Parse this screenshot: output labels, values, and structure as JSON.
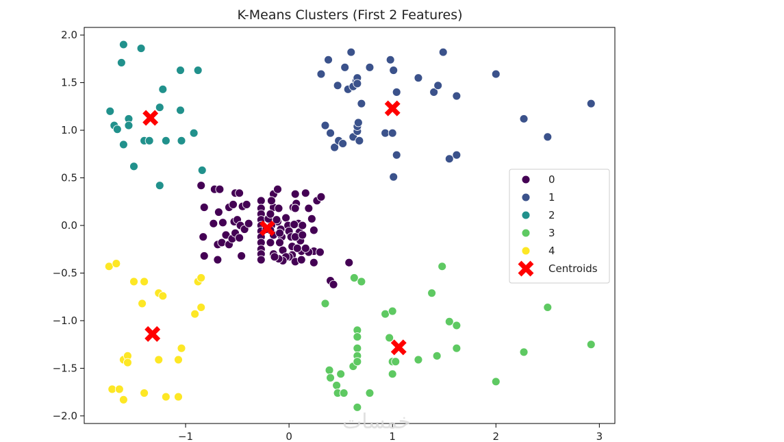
{
  "chart_data": {
    "type": "scatter",
    "title": "K-Means Clusters (First 2 Features)",
    "xlabel": "",
    "ylabel": "",
    "xlim": [
      -1.98,
      3.15
    ],
    "ylim": [
      -2.08,
      2.08
    ],
    "xticks": [
      -1,
      0,
      1,
      2,
      3
    ],
    "xtick_labels": [
      "−1",
      "0",
      "1",
      "2",
      "3"
    ],
    "yticks": [
      -2.0,
      -1.5,
      -1.0,
      -0.5,
      0.0,
      0.5,
      1.0,
      1.5,
      2.0
    ],
    "ytick_labels": [
      "−2.0",
      "−1.5",
      "−1.0",
      "−0.5",
      "0.0",
      "0.5",
      "1.0",
      "1.5",
      "2.0"
    ],
    "grid": false,
    "legend_position": "center-right",
    "series": [
      {
        "name": "0",
        "color": "#440154",
        "points": [
          [
            -0.85,
            0.42
          ],
          [
            -0.72,
            0.38
          ],
          [
            -0.67,
            0.38
          ],
          [
            -0.82,
            0.19
          ],
          [
            -0.68,
            0.14
          ],
          [
            -0.58,
            0.19
          ],
          [
            -0.52,
            0.34
          ],
          [
            -0.48,
            0.34
          ],
          [
            -0.45,
            0.2
          ],
          [
            -0.41,
            0.22
          ],
          [
            -0.54,
            0.22
          ],
          [
            -0.73,
            0.02
          ],
          [
            -0.64,
            0.03
          ],
          [
            -0.53,
            0.04
          ],
          [
            -0.5,
            0.06
          ],
          [
            -0.47,
            0.0
          ],
          [
            -0.43,
            -0.04
          ],
          [
            -0.39,
            0.02
          ],
          [
            -0.83,
            -0.12
          ],
          [
            -0.69,
            -0.2
          ],
          [
            -0.65,
            -0.18
          ],
          [
            -0.61,
            -0.1
          ],
          [
            -0.58,
            -0.2
          ],
          [
            -0.55,
            -0.14
          ],
          [
            -0.52,
            -0.08
          ],
          [
            -0.48,
            -0.13
          ],
          [
            -0.82,
            -0.32
          ],
          [
            -0.69,
            -0.36
          ],
          [
            -0.46,
            -0.32
          ],
          [
            -0.27,
            0.26
          ],
          [
            -0.27,
            0.18
          ],
          [
            -0.27,
            0.12
          ],
          [
            -0.27,
            0.06
          ],
          [
            -0.27,
            0.0
          ],
          [
            -0.27,
            -0.06
          ],
          [
            -0.27,
            -0.12
          ],
          [
            -0.27,
            -0.18
          ],
          [
            -0.27,
            -0.25
          ],
          [
            -0.27,
            -0.3
          ],
          [
            -0.27,
            -0.36
          ],
          [
            -0.15,
            0.33
          ],
          [
            -0.15,
            0.19
          ],
          [
            -0.17,
            0.26
          ],
          [
            -0.11,
            0.04
          ],
          [
            -0.15,
            -0.1
          ],
          [
            -0.18,
            -0.18
          ],
          [
            -0.15,
            -0.3
          ],
          [
            -0.1,
            0.18
          ],
          [
            -0.11,
            0.38
          ],
          [
            -0.08,
            -0.04
          ],
          [
            -0.07,
            -0.12
          ],
          [
            -0.09,
            -0.18
          ],
          [
            -0.06,
            -0.26
          ],
          [
            -0.03,
            0.08
          ],
          [
            -0.01,
            0.0
          ],
          [
            0.0,
            -0.06
          ],
          [
            0.02,
            -0.12
          ],
          [
            0.03,
            -0.22
          ],
          [
            0.04,
            0.19
          ],
          [
            0.06,
            0.33
          ],
          [
            0.07,
            0.23
          ],
          [
            0.09,
            0.02
          ],
          [
            0.1,
            -0.07
          ],
          [
            0.11,
            -0.16
          ],
          [
            0.12,
            -0.27
          ],
          [
            0.16,
            0.34
          ],
          [
            0.19,
            0.18
          ],
          [
            0.22,
            0.07
          ],
          [
            0.24,
            -0.05
          ],
          [
            0.24,
            -0.27
          ],
          [
            0.24,
            -0.39
          ],
          [
            0.27,
            0.26
          ],
          [
            0.31,
            0.3
          ],
          [
            0.03,
            -0.31
          ],
          [
            0.0,
            -0.33
          ],
          [
            -0.03,
            -0.33
          ],
          [
            -0.06,
            -0.37
          ],
          [
            -0.1,
            -0.35
          ],
          [
            -0.14,
            -0.33
          ],
          [
            -0.17,
            0.0
          ],
          [
            -0.18,
            -0.05
          ],
          [
            -0.2,
            0.07
          ],
          [
            0.19,
            -0.28
          ],
          [
            0.16,
            -0.24
          ],
          [
            0.06,
            -0.38
          ],
          [
            0.06,
            -0.12
          ],
          [
            0.05,
            0.01
          ],
          [
            0.13,
            0.0
          ],
          [
            0.13,
            -0.1
          ],
          [
            0.3,
            -0.28
          ],
          [
            0.12,
            -0.36
          ],
          [
            0.08,
            -0.24
          ],
          [
            0.4,
            -0.58
          ],
          [
            0.43,
            -0.62
          ],
          [
            0.58,
            -0.39
          ],
          [
            -0.09,
            -0.08
          ],
          [
            -0.12,
            0.06
          ],
          [
            -0.22,
            -0.04
          ],
          [
            0.06,
            0.18
          ],
          [
            -0.18,
            0.12
          ]
        ]
      },
      {
        "name": "1",
        "color": "#3b528b",
        "points": [
          [
            0.31,
            1.59
          ],
          [
            0.38,
            1.74
          ],
          [
            0.47,
            1.47
          ],
          [
            0.54,
            1.66
          ],
          [
            0.57,
            1.43
          ],
          [
            0.62,
            1.46
          ],
          [
            0.6,
            1.82
          ],
          [
            0.65,
            1.52
          ],
          [
            0.66,
            1.55
          ],
          [
            0.66,
            1.49
          ],
          [
            0.7,
            1.28
          ],
          [
            0.78,
            1.66
          ],
          [
            0.98,
            1.74
          ],
          [
            1.01,
            1.63
          ],
          [
            1.04,
            1.4
          ],
          [
            1.25,
            1.55
          ],
          [
            1.4,
            1.4
          ],
          [
            1.44,
            1.47
          ],
          [
            1.49,
            1.82
          ],
          [
            1.62,
            1.36
          ],
          [
            2.0,
            1.59
          ],
          [
            2.27,
            1.12
          ],
          [
            2.5,
            0.93
          ],
          [
            2.92,
            1.28
          ],
          [
            0.35,
            1.05
          ],
          [
            0.4,
            0.97
          ],
          [
            0.44,
            0.82
          ],
          [
            0.48,
            0.89
          ],
          [
            0.52,
            0.86
          ],
          [
            0.62,
            0.93
          ],
          [
            0.66,
            0.99
          ],
          [
            0.66,
            1.04
          ],
          [
            0.67,
            1.08
          ],
          [
            0.68,
            0.89
          ],
          [
            0.93,
            0.97
          ],
          [
            1.0,
            0.97
          ],
          [
            1.04,
            0.74
          ],
          [
            1.01,
            0.51
          ],
          [
            1.55,
            0.7
          ],
          [
            1.62,
            0.74
          ]
        ]
      },
      {
        "name": "2",
        "color": "#21918c",
        "points": [
          [
            -1.6,
            1.9
          ],
          [
            -1.62,
            1.71
          ],
          [
            -1.43,
            1.86
          ],
          [
            -1.73,
            1.2
          ],
          [
            -1.69,
            1.05
          ],
          [
            -1.66,
            1.01
          ],
          [
            -1.55,
            1.12
          ],
          [
            -1.55,
            1.05
          ],
          [
            -1.6,
            0.85
          ],
          [
            -1.5,
            0.62
          ],
          [
            -1.4,
            0.89
          ],
          [
            -1.35,
            0.89
          ],
          [
            -1.25,
            1.24
          ],
          [
            -1.22,
            1.43
          ],
          [
            -1.19,
            0.89
          ],
          [
            -1.05,
            1.63
          ],
          [
            -1.05,
            1.21
          ],
          [
            -1.04,
            0.89
          ],
          [
            -0.92,
            0.97
          ],
          [
            -0.88,
            1.63
          ],
          [
            -0.84,
            0.58
          ],
          [
            -1.25,
            0.42
          ]
        ]
      },
      {
        "name": "3",
        "color": "#5ec962",
        "points": [
          [
            0.63,
            -0.55
          ],
          [
            0.7,
            -0.59
          ],
          [
            0.35,
            -0.82
          ],
          [
            0.39,
            -1.52
          ],
          [
            0.4,
            -1.6
          ],
          [
            0.46,
            -1.68
          ],
          [
            0.47,
            -1.76
          ],
          [
            0.5,
            -1.56
          ],
          [
            0.53,
            -1.76
          ],
          [
            0.62,
            -1.48
          ],
          [
            0.66,
            -1.1
          ],
          [
            0.66,
            -1.17
          ],
          [
            0.66,
            -1.29
          ],
          [
            0.66,
            -1.37
          ],
          [
            0.66,
            -1.43
          ],
          [
            0.66,
            -1.91
          ],
          [
            0.78,
            -1.76
          ],
          [
            0.93,
            -0.93
          ],
          [
            0.97,
            -1.18
          ],
          [
            1.0,
            -0.9
          ],
          [
            1.0,
            -1.43
          ],
          [
            1.0,
            -1.56
          ],
          [
            1.03,
            -1.43
          ],
          [
            1.25,
            -1.41
          ],
          [
            1.38,
            -0.71
          ],
          [
            1.43,
            -1.37
          ],
          [
            1.48,
            -0.43
          ],
          [
            1.55,
            -1.01
          ],
          [
            1.62,
            -1.05
          ],
          [
            1.62,
            -1.29
          ],
          [
            2.0,
            -1.64
          ],
          [
            2.27,
            -1.33
          ],
          [
            2.5,
            -0.86
          ],
          [
            2.92,
            -1.25
          ]
        ]
      },
      {
        "name": "4",
        "color": "#fde725",
        "points": [
          [
            -1.74,
            -0.43
          ],
          [
            -1.67,
            -0.4
          ],
          [
            -1.5,
            -0.59
          ],
          [
            -1.42,
            -0.82
          ],
          [
            -1.4,
            -0.59
          ],
          [
            -1.26,
            -0.71
          ],
          [
            -1.22,
            -0.74
          ],
          [
            -0.88,
            -0.59
          ],
          [
            -0.85,
            -0.55
          ],
          [
            -0.91,
            -0.93
          ],
          [
            -0.85,
            -0.86
          ],
          [
            -1.71,
            -1.72
          ],
          [
            -1.64,
            -1.72
          ],
          [
            -1.6,
            -1.83
          ],
          [
            -1.6,
            -1.41
          ],
          [
            -1.56,
            -1.37
          ],
          [
            -1.56,
            -1.44
          ],
          [
            -1.4,
            -1.76
          ],
          [
            -1.26,
            -1.41
          ],
          [
            -1.19,
            -1.8
          ],
          [
            -1.07,
            -1.41
          ],
          [
            -1.07,
            -1.8
          ],
          [
            -1.04,
            -1.29
          ]
        ]
      }
    ],
    "centroids": {
      "name": "Centroids",
      "color": "#ff0000",
      "points": [
        [
          -0.21,
          -0.03
        ],
        [
          1.0,
          1.23
        ],
        [
          -1.34,
          1.13
        ],
        [
          1.06,
          -1.28
        ],
        [
          -1.32,
          -1.14
        ]
      ]
    }
  },
  "watermark": "خمسات"
}
